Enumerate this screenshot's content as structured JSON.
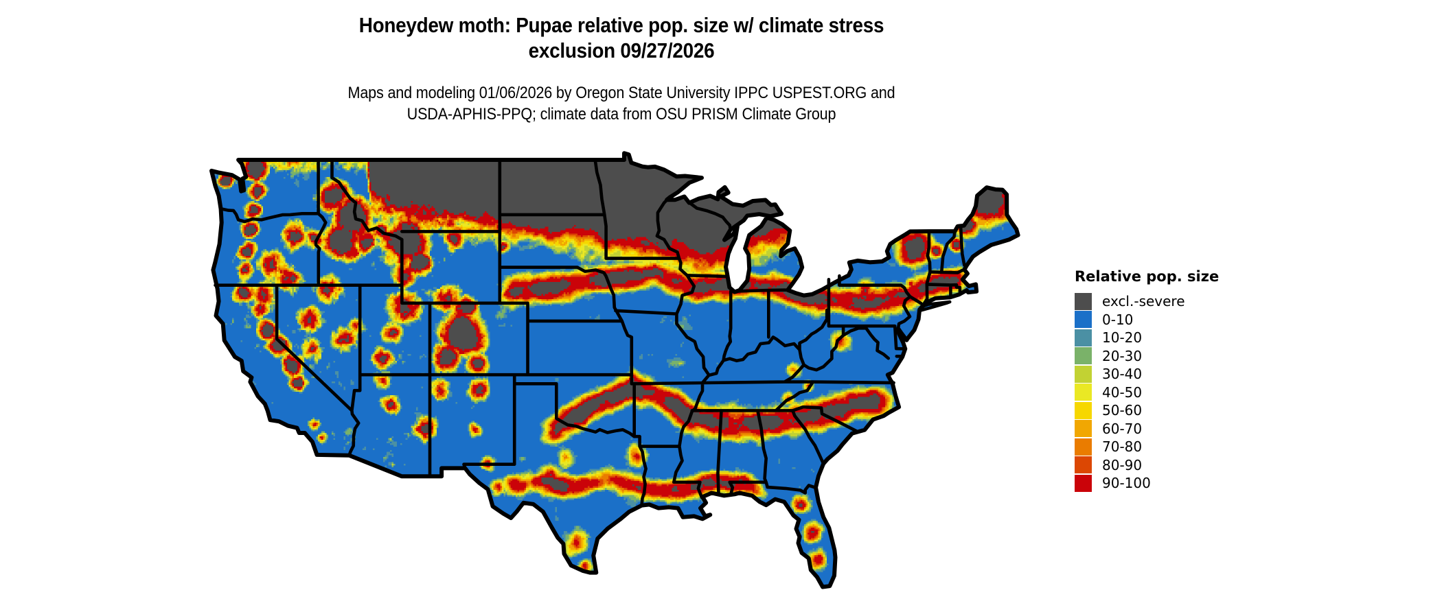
{
  "header": {
    "title_line1": "Honeydew moth: Pupae relative pop. size w/ climate stress",
    "title_line2": "exclusion 09/27/2026",
    "subtitle_line1": "Maps and modeling 01/06/2026 by Oregon State University IPPC USPEST.ORG and",
    "subtitle_line2": "USDA-APHIS-PPQ; climate data from OSU PRISM Climate Group"
  },
  "legend": {
    "title": "Relative pop. size",
    "items": [
      {
        "label": "excl.-severe",
        "color": "#4d4d4d"
      },
      {
        "label": "0-10",
        "color": "#1b70c8"
      },
      {
        "label": "10-20",
        "color": "#4b90a4"
      },
      {
        "label": "20-30",
        "color": "#7ab269"
      },
      {
        "label": "30-40",
        "color": "#c2d233"
      },
      {
        "label": "40-50",
        "color": "#eae824"
      },
      {
        "label": "50-60",
        "color": "#f6d700"
      },
      {
        "label": "60-70",
        "color": "#f1a702"
      },
      {
        "label": "70-80",
        "color": "#ea7c00"
      },
      {
        "label": "80-90",
        "color": "#dc4703"
      },
      {
        "label": "90-100",
        "color": "#ca0309"
      }
    ]
  },
  "map": {
    "region_depicted": "Contiguous United States with state boundaries",
    "boundary_color": "#000000",
    "background_color": "#ffffff"
  }
}
